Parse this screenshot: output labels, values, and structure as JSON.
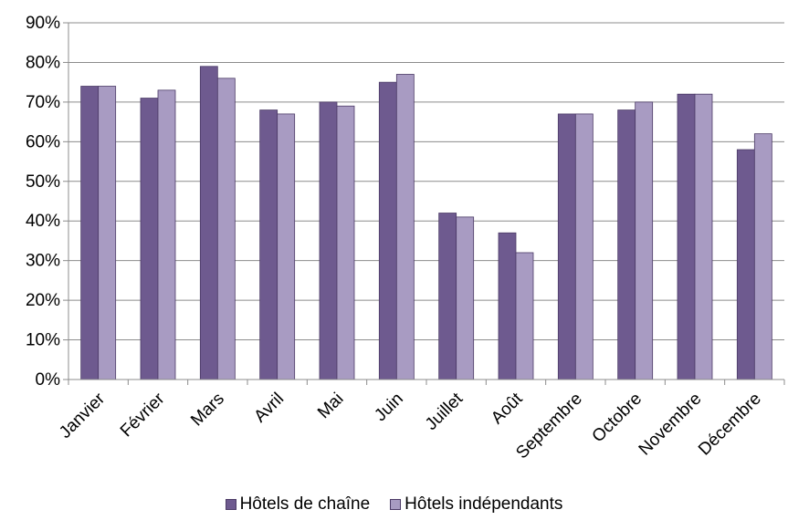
{
  "chart_data": {
    "type": "bar",
    "title": "",
    "xlabel": "",
    "ylabel": "",
    "categories": [
      "Janvier",
      "Février",
      "Mars",
      "Avril",
      "Mai",
      "Juin",
      "Juillet",
      "Août",
      "Septembre",
      "Octobre",
      "Novembre",
      "Décembre"
    ],
    "series": [
      {
        "name": "Hôtels de chaîne",
        "color": "#6e5a8f",
        "values": [
          74,
          71,
          79,
          68,
          70,
          75,
          42,
          37,
          67,
          68,
          72,
          58
        ]
      },
      {
        "name": "Hôtels indépendants",
        "color": "#a89bc2",
        "values": [
          74,
          73,
          76,
          67,
          69,
          77,
          41,
          32,
          67,
          70,
          72,
          62
        ]
      }
    ],
    "ylim": [
      0,
      90
    ],
    "yticks": [
      0,
      10,
      20,
      30,
      40,
      50,
      60,
      70,
      80,
      90
    ],
    "ytick_labels": [
      "0%",
      "10%",
      "20%",
      "30%",
      "40%",
      "50%",
      "60%",
      "70%",
      "80%",
      "90%"
    ],
    "grid": true,
    "legend_position": "bottom"
  }
}
